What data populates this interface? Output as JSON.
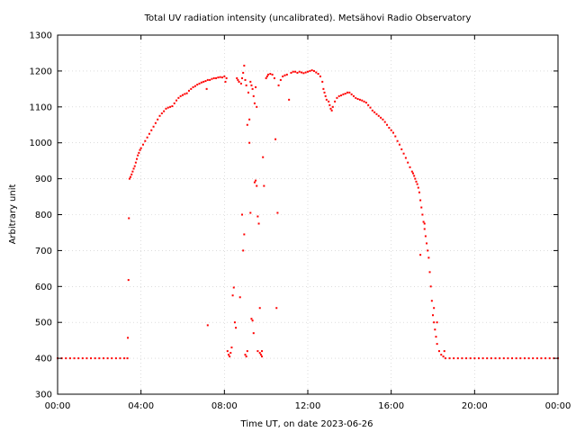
{
  "chart_data": {
    "type": "scatter",
    "title": "Total UV radiation intensity (uncalibrated). Metsähovi Radio Observatory",
    "xlabel": "Time UT, on date 2023-06-26",
    "ylabel": "Arbitrary unit",
    "x_unit": "hours UT",
    "xlim": [
      0,
      24
    ],
    "ylim": [
      300,
      1300
    ],
    "x_ticks": [
      0,
      4,
      8,
      12,
      16,
      20,
      24
    ],
    "x_tick_labels": [
      "00:00",
      "04:00",
      "08:00",
      "12:00",
      "16:00",
      "20:00",
      "00:00"
    ],
    "y_ticks": [
      300,
      400,
      500,
      600,
      700,
      800,
      900,
      1000,
      1100,
      1200,
      1300
    ],
    "y_tick_labels": [
      "300",
      "400",
      "500",
      "600",
      "700",
      "800",
      "900",
      "1000",
      "1100",
      "1200",
      "1300"
    ],
    "grid": true,
    "marker_color": "#ff0000",
    "series": [
      {
        "name": "",
        "color": "#ff0000",
        "points": [
          [
            0.0,
            400
          ],
          [
            0.2,
            400
          ],
          [
            0.4,
            400
          ],
          [
            0.6,
            400
          ],
          [
            0.8,
            400
          ],
          [
            1.0,
            400
          ],
          [
            1.2,
            400
          ],
          [
            1.4,
            400
          ],
          [
            1.6,
            400
          ],
          [
            1.8,
            400
          ],
          [
            2.0,
            400
          ],
          [
            2.2,
            400
          ],
          [
            2.4,
            400
          ],
          [
            2.6,
            400
          ],
          [
            2.8,
            400
          ],
          [
            3.0,
            400
          ],
          [
            3.2,
            400
          ],
          [
            3.35,
            400
          ],
          [
            3.37,
            457
          ],
          [
            3.4,
            618
          ],
          [
            3.42,
            790
          ],
          [
            3.45,
            900
          ],
          [
            3.5,
            905
          ],
          [
            3.55,
            912
          ],
          [
            3.6,
            920
          ],
          [
            3.65,
            928
          ],
          [
            3.7,
            935
          ],
          [
            3.75,
            945
          ],
          [
            3.8,
            955
          ],
          [
            3.85,
            965
          ],
          [
            3.9,
            972
          ],
          [
            3.95,
            980
          ],
          [
            4.0,
            985
          ],
          [
            4.1,
            995
          ],
          [
            4.2,
            1005
          ],
          [
            4.3,
            1015
          ],
          [
            4.4,
            1025
          ],
          [
            4.5,
            1035
          ],
          [
            4.6,
            1045
          ],
          [
            4.7,
            1055
          ],
          [
            4.8,
            1065
          ],
          [
            4.9,
            1075
          ],
          [
            5.0,
            1082
          ],
          [
            5.1,
            1088
          ],
          [
            5.2,
            1095
          ],
          [
            5.3,
            1098
          ],
          [
            5.4,
            1100
          ],
          [
            5.5,
            1102
          ],
          [
            5.6,
            1110
          ],
          [
            5.7,
            1118
          ],
          [
            5.8,
            1125
          ],
          [
            5.9,
            1130
          ],
          [
            6.0,
            1133
          ],
          [
            6.1,
            1136
          ],
          [
            6.2,
            1138
          ],
          [
            6.3,
            1145
          ],
          [
            6.4,
            1150
          ],
          [
            6.5,
            1155
          ],
          [
            6.6,
            1158
          ],
          [
            6.7,
            1162
          ],
          [
            6.8,
            1165
          ],
          [
            6.9,
            1168
          ],
          [
            7.0,
            1170
          ],
          [
            7.1,
            1172
          ],
          [
            7.15,
            1150
          ],
          [
            7.2,
            1175
          ],
          [
            7.3,
            1175
          ],
          [
            7.4,
            1178
          ],
          [
            7.5,
            1180
          ],
          [
            7.6,
            1180
          ],
          [
            7.7,
            1182
          ],
          [
            7.8,
            1183
          ],
          [
            7.9,
            1182
          ],
          [
            8.0,
            1185
          ],
          [
            8.05,
            1170
          ],
          [
            8.1,
            1180
          ],
          [
            8.15,
            420
          ],
          [
            8.2,
            410
          ],
          [
            8.25,
            405
          ],
          [
            8.3,
            415
          ],
          [
            8.35,
            430
          ],
          [
            8.4,
            575
          ],
          [
            8.45,
            597
          ],
          [
            8.5,
            500
          ],
          [
            8.55,
            485
          ],
          [
            8.6,
            1180
          ],
          [
            8.65,
            1175
          ],
          [
            8.7,
            1170
          ],
          [
            8.75,
            570
          ],
          [
            8.8,
            1165
          ],
          [
            8.85,
            1180
          ],
          [
            8.9,
            1195
          ],
          [
            8.95,
            1215
          ],
          [
            9.0,
            1175
          ],
          [
            9.05,
            1160
          ],
          [
            9.1,
            1050
          ],
          [
            9.15,
            1140
          ],
          [
            9.2,
            1065
          ],
          [
            9.25,
            1170
          ],
          [
            9.3,
            1160
          ],
          [
            9.35,
            1150
          ],
          [
            9.4,
            1130
          ],
          [
            9.45,
            1110
          ],
          [
            9.5,
            1155
          ],
          [
            9.55,
            1100
          ],
          [
            8.85,
            800
          ],
          [
            8.9,
            700
          ],
          [
            8.95,
            745
          ],
          [
            9.0,
            410
          ],
          [
            9.05,
            405
          ],
          [
            9.1,
            420
          ],
          [
            9.2,
            1000
          ],
          [
            9.25,
            805
          ],
          [
            9.3,
            510
          ],
          [
            9.35,
            505
          ],
          [
            9.4,
            470
          ],
          [
            9.45,
            890
          ],
          [
            9.5,
            895
          ],
          [
            9.55,
            880
          ],
          [
            9.6,
            795
          ],
          [
            9.65,
            775
          ],
          [
            9.7,
            540
          ],
          [
            9.75,
            410
          ],
          [
            9.8,
            405
          ],
          [
            9.85,
            960
          ],
          [
            9.9,
            880
          ],
          [
            7.2,
            492
          ],
          [
            9.6,
            420
          ],
          [
            9.7,
            415
          ],
          [
            9.8,
            420
          ],
          [
            10.0,
            1180
          ],
          [
            10.05,
            1185
          ],
          [
            10.1,
            1190
          ],
          [
            10.2,
            1192
          ],
          [
            10.3,
            1190
          ],
          [
            10.4,
            1180
          ],
          [
            10.45,
            1010
          ],
          [
            10.5,
            540
          ],
          [
            10.55,
            805
          ],
          [
            10.6,
            1160
          ],
          [
            10.7,
            1175
          ],
          [
            10.8,
            1185
          ],
          [
            10.9,
            1188
          ],
          [
            11.0,
            1190
          ],
          [
            11.1,
            1120
          ],
          [
            11.2,
            1195
          ],
          [
            11.3,
            1198
          ],
          [
            11.4,
            1198
          ],
          [
            11.5,
            1195
          ],
          [
            11.6,
            1198
          ],
          [
            11.7,
            1196
          ],
          [
            11.8,
            1194
          ],
          [
            11.9,
            1196
          ],
          [
            12.0,
            1198
          ],
          [
            12.1,
            1200
          ],
          [
            12.2,
            1202
          ],
          [
            12.3,
            1200
          ],
          [
            12.4,
            1196
          ],
          [
            12.5,
            1192
          ],
          [
            12.6,
            1185
          ],
          [
            12.7,
            1170
          ],
          [
            12.75,
            1150
          ],
          [
            12.8,
            1140
          ],
          [
            12.85,
            1130
          ],
          [
            12.9,
            1120
          ],
          [
            13.0,
            1115
          ],
          [
            13.05,
            1105
          ],
          [
            13.1,
            1095
          ],
          [
            13.15,
            1090
          ],
          [
            13.2,
            1100
          ],
          [
            13.3,
            1115
          ],
          [
            13.4,
            1125
          ],
          [
            13.5,
            1130
          ],
          [
            13.6,
            1132
          ],
          [
            13.7,
            1135
          ],
          [
            13.8,
            1137
          ],
          [
            13.9,
            1140
          ],
          [
            14.0,
            1140
          ],
          [
            14.1,
            1135
          ],
          [
            14.2,
            1130
          ],
          [
            14.3,
            1125
          ],
          [
            14.4,
            1122
          ],
          [
            14.5,
            1120
          ],
          [
            14.6,
            1118
          ],
          [
            14.7,
            1115
          ],
          [
            14.8,
            1112
          ],
          [
            14.9,
            1105
          ],
          [
            15.0,
            1098
          ],
          [
            15.1,
            1090
          ],
          [
            15.2,
            1085
          ],
          [
            15.3,
            1080
          ],
          [
            15.4,
            1075
          ],
          [
            15.5,
            1070
          ],
          [
            15.6,
            1065
          ],
          [
            15.7,
            1058
          ],
          [
            15.8,
            1050
          ],
          [
            15.9,
            1042
          ],
          [
            16.0,
            1035
          ],
          [
            16.1,
            1028
          ],
          [
            16.2,
            1018
          ],
          [
            16.3,
            1005
          ],
          [
            16.4,
            995
          ],
          [
            16.5,
            982
          ],
          [
            16.6,
            970
          ],
          [
            16.7,
            958
          ],
          [
            16.8,
            945
          ],
          [
            16.9,
            932
          ],
          [
            17.0,
            920
          ],
          [
            17.05,
            915
          ],
          [
            17.1,
            908
          ],
          [
            17.15,
            900
          ],
          [
            17.2,
            892
          ],
          [
            17.25,
            885
          ],
          [
            17.3,
            875
          ],
          [
            17.35,
            862
          ],
          [
            17.4,
            840
          ],
          [
            17.45,
            820
          ],
          [
            17.5,
            800
          ],
          [
            17.55,
            780
          ],
          [
            17.6,
            760
          ],
          [
            17.65,
            740
          ],
          [
            17.7,
            720
          ],
          [
            17.75,
            700
          ],
          [
            17.8,
            680
          ],
          [
            17.85,
            640
          ],
          [
            17.9,
            600
          ],
          [
            17.95,
            560
          ],
          [
            18.0,
            520
          ],
          [
            18.05,
            500
          ],
          [
            18.1,
            480
          ],
          [
            18.15,
            460
          ],
          [
            18.2,
            440
          ],
          [
            18.3,
            420
          ],
          [
            18.4,
            410
          ],
          [
            18.5,
            405
          ],
          [
            18.55,
            420
          ],
          [
            17.4,
            688
          ],
          [
            17.6,
            775
          ],
          [
            18.05,
            540
          ],
          [
            18.2,
            500
          ],
          [
            18.6,
            400
          ],
          [
            18.8,
            400
          ],
          [
            19.0,
            400
          ],
          [
            19.2,
            400
          ],
          [
            19.4,
            400
          ],
          [
            19.6,
            400
          ],
          [
            19.8,
            400
          ],
          [
            20.0,
            400
          ],
          [
            20.2,
            400
          ],
          [
            20.4,
            400
          ],
          [
            20.6,
            400
          ],
          [
            20.8,
            400
          ],
          [
            21.0,
            400
          ],
          [
            21.2,
            400
          ],
          [
            21.4,
            400
          ],
          [
            21.6,
            400
          ],
          [
            21.8,
            400
          ],
          [
            22.0,
            400
          ],
          [
            22.2,
            400
          ],
          [
            22.4,
            400
          ],
          [
            22.6,
            400
          ],
          [
            22.8,
            400
          ],
          [
            23.0,
            400
          ],
          [
            23.2,
            400
          ],
          [
            23.4,
            400
          ],
          [
            23.6,
            400
          ],
          [
            23.8,
            400
          ],
          [
            24.0,
            400
          ]
        ]
      }
    ]
  }
}
